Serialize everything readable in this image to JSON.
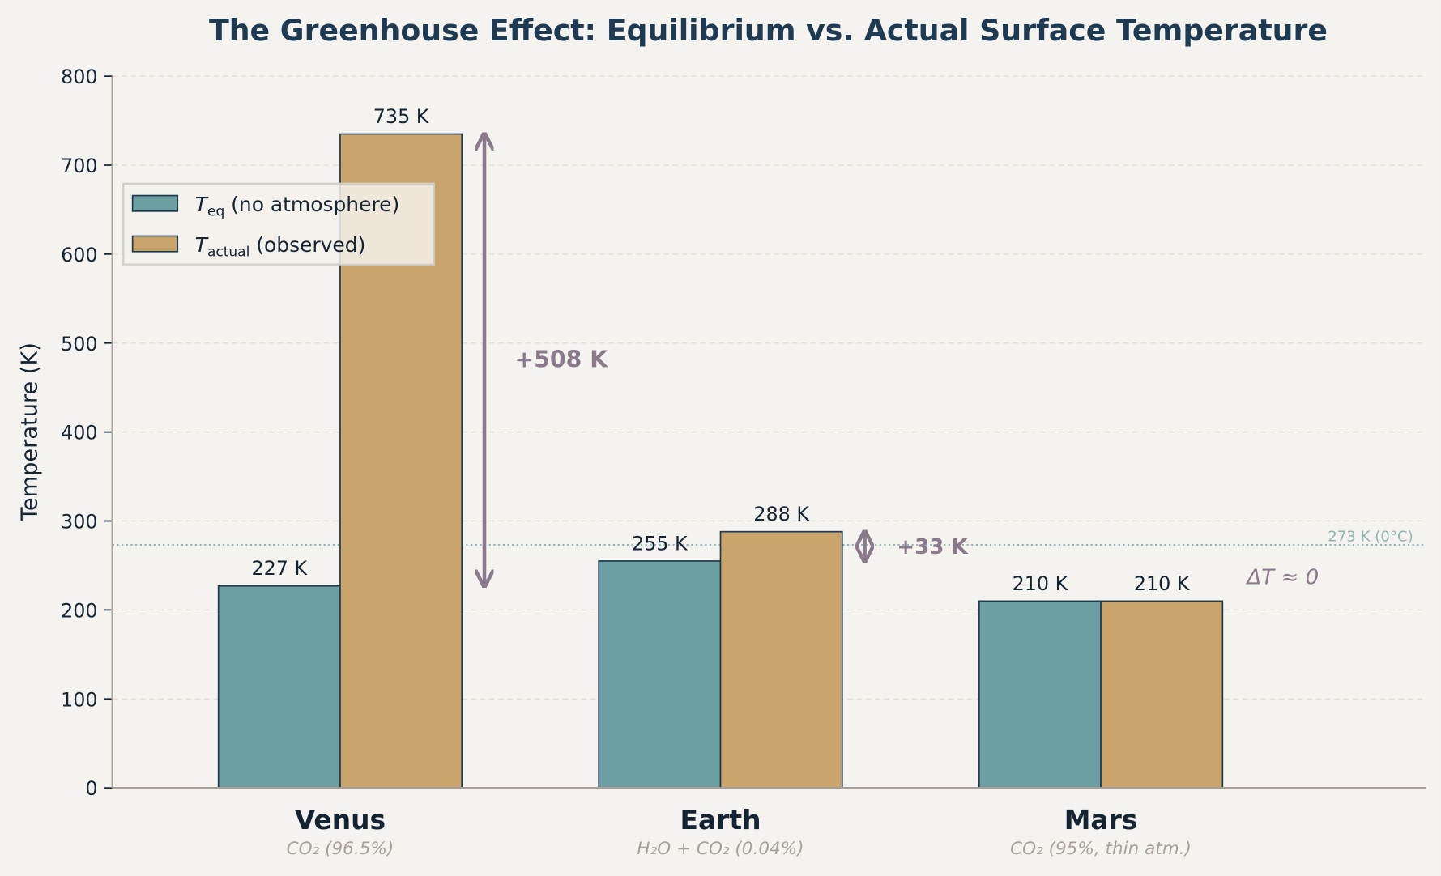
{
  "chart_data": {
    "type": "bar",
    "title": "The Greenhouse Effect: Equilibrium vs. Actual Surface Temperature",
    "ylabel": "Temperature (K)",
    "xlabel": "",
    "ylim": [
      0,
      800
    ],
    "yticks": [
      "0",
      "100",
      "200",
      "300",
      "400",
      "500",
      "600",
      "700",
      "800"
    ],
    "grid": "horizontal dashed",
    "legend_position": "top-left",
    "categories": [
      "Venus",
      "Earth",
      "Mars"
    ],
    "category_subtitles": [
      "CO₂ (96.5%)",
      "H₂O + CO₂ (0.04%)",
      "CO₂ (95%, thin atm.)"
    ],
    "series": [
      {
        "name": "T_eq (no atmosphere)",
        "legend_main": "T",
        "legend_sub": "eq",
        "legend_rest": " (no atmosphere)",
        "color": "#6c9fa2",
        "values": [
          227,
          255,
          210
        ],
        "labels": [
          "227 K",
          "255 K",
          "210 K"
        ]
      },
      {
        "name": "T_actual (observed)",
        "legend_main": "T",
        "legend_sub": "actual",
        "legend_rest": " (observed)",
        "color": "#c9a56b",
        "values": [
          735,
          288,
          210
        ],
        "labels": [
          "735 K",
          "288 K",
          "210 K"
        ]
      }
    ],
    "annotations": [
      {
        "category": "Venus",
        "from": 227,
        "to": 735,
        "label": "+508 K"
      },
      {
        "category": "Earth",
        "from": 255,
        "to": 288,
        "label": "+33 K"
      },
      {
        "category": "Mars",
        "label": "ΔT ≈ 0"
      }
    ],
    "reference_line": {
      "value": 273,
      "label": "273 K (0°C)",
      "color": "#8fb5b3"
    },
    "colors": {
      "title": "#1d3a52",
      "annotation": "#8a7a8c",
      "edge": "#1d3a52",
      "background": "#f4f3ef"
    }
  }
}
